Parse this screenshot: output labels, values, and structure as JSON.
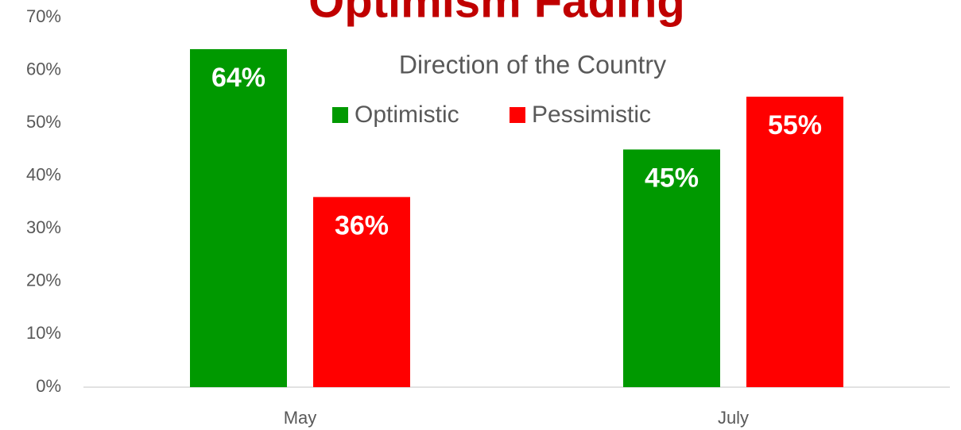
{
  "chart_data": {
    "type": "bar",
    "title": "Optimism Fading",
    "subtitle": "Direction of the Country",
    "categories": [
      "May",
      "July"
    ],
    "series": [
      {
        "name": "Optimistic",
        "color": "#009900",
        "values": [
          64,
          45
        ],
        "value_labels": [
          "64%",
          "45%"
        ]
      },
      {
        "name": "Pessimistic",
        "color": "#ff0000",
        "values": [
          36,
          55
        ],
        "value_labels": [
          "36%",
          "55%"
        ]
      }
    ],
    "ylim": [
      0,
      70
    ],
    "yticks": [
      {
        "value": 0,
        "label": "0%"
      },
      {
        "value": 10,
        "label": "10%"
      },
      {
        "value": 20,
        "label": "20%"
      },
      {
        "value": 30,
        "label": "30%"
      },
      {
        "value": 40,
        "label": "40%"
      },
      {
        "value": 50,
        "label": "50%"
      },
      {
        "value": 60,
        "label": "60%"
      },
      {
        "value": 70,
        "label": "70%"
      }
    ],
    "grid": false,
    "legend": "top"
  }
}
